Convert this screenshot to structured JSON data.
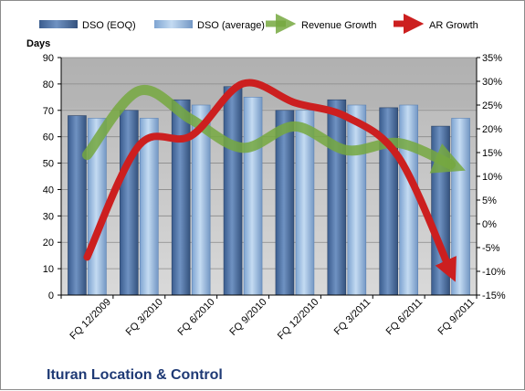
{
  "chart_data": {
    "type": "bar",
    "title": "Ituran Location & Control",
    "ylabel": "Days",
    "ylim": [
      0,
      90
    ],
    "y2lim": [
      -15,
      35
    ],
    "categories": [
      "FQ 12/2009",
      "FQ 3/2010",
      "FQ 6/2010",
      "FQ 9/2010",
      "FQ 12/2010",
      "FQ 3/2011",
      "FQ 6/2011",
      "FQ 9/2011"
    ],
    "y_ticks": [
      "0",
      "10",
      "20",
      "30",
      "40",
      "50",
      "60",
      "70",
      "80",
      "90"
    ],
    "y2_ticks": [
      "-15%",
      "-10%",
      "-5%",
      "0%",
      "5%",
      "10%",
      "15%",
      "20%",
      "25%",
      "30%",
      "35%"
    ],
    "series": [
      {
        "name": "DSO (EOQ)",
        "kind": "bar",
        "axis": "left",
        "color": "#4a6fa5",
        "values": [
          68,
          70,
          74,
          79,
          70,
          74,
          71,
          64
        ]
      },
      {
        "name": "DSO (average)",
        "kind": "bar",
        "axis": "left",
        "color": "#8fb4de",
        "values": [
          67,
          67,
          72,
          75,
          70,
          72,
          72,
          67
        ]
      },
      {
        "name": "Revenue Growth",
        "kind": "line",
        "axis": "right",
        "color": "#76a83f",
        "values": [
          14.5,
          28,
          22,
          16,
          20.5,
          15.5,
          17,
          12.5
        ]
      },
      {
        "name": "AR Growth",
        "kind": "line",
        "axis": "right",
        "color": "#cc1f1f",
        "values": [
          -7,
          16.5,
          18.5,
          29.5,
          25.5,
          22.5,
          14,
          -10
        ]
      }
    ],
    "legend_position": "top",
    "grid": true
  }
}
